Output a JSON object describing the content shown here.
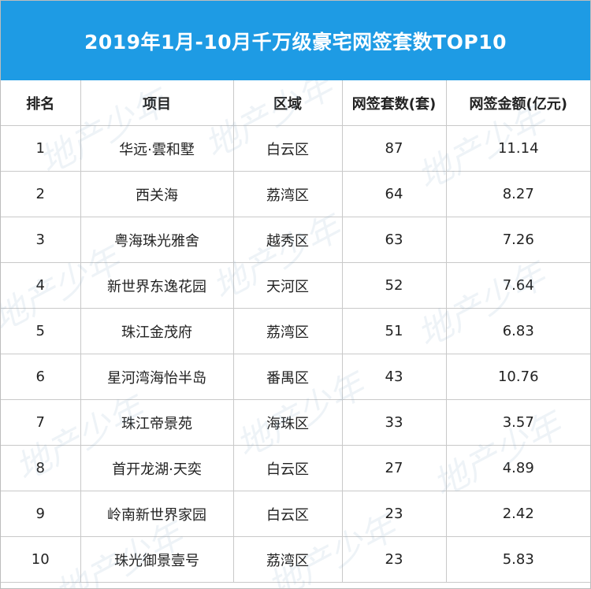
{
  "title": "2019年1月-10月千万级豪宅网签套数TOP10",
  "colors": {
    "header_bg": "#1e9be4",
    "title_text": "#ffffff",
    "grid_line": "#c9c9c9"
  },
  "table": {
    "headers": [
      "排名",
      "项目",
      "区域",
      "网签套数(套)",
      "网签金额(亿元)"
    ],
    "rows": [
      [
        "1",
        "华远·雲和墅",
        "白云区",
        "87",
        "11.14"
      ],
      [
        "2",
        "西关海",
        "荔湾区",
        "64",
        "8.27"
      ],
      [
        "3",
        "粤海珠光雅舍",
        "越秀区",
        "63",
        "7.26"
      ],
      [
        "4",
        "新世界东逸花园",
        "天河区",
        "52",
        "7.64"
      ],
      [
        "5",
        "珠江金茂府",
        "荔湾区",
        "51",
        "6.83"
      ],
      [
        "6",
        "星河湾海怡半岛",
        "番禺区",
        "43",
        "10.76"
      ],
      [
        "7",
        "珠江帝景苑",
        "海珠区",
        "33",
        "3.57"
      ],
      [
        "8",
        "首开龙湖·天奕",
        "白云区",
        "27",
        "4.89"
      ],
      [
        "9",
        "岭南新世界家园",
        "白云区",
        "23",
        "2.42"
      ],
      [
        "10",
        "珠光御景壹号",
        "荔湾区",
        "23",
        "5.83"
      ]
    ]
  },
  "watermark": "地产少年"
}
